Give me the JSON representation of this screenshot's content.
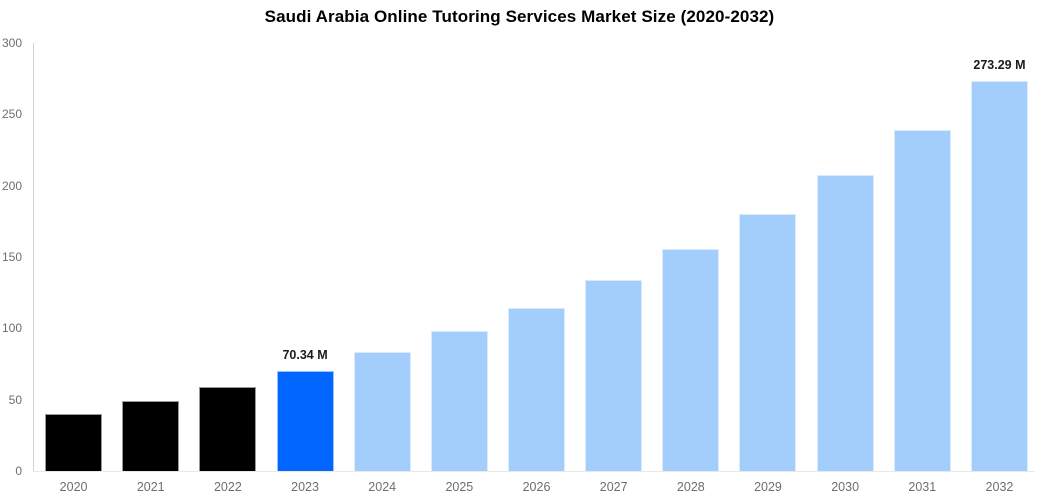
{
  "title": "Saudi Arabia Online Tutoring Services Market Size (2020-2032)",
  "chart_data": {
    "type": "bar",
    "title": "Saudi Arabia Online Tutoring Services Market Size (2020-2032)",
    "categories": [
      "2020",
      "2021",
      "2022",
      "2023",
      "2024",
      "2025",
      "2026",
      "2027",
      "2028",
      "2029",
      "2030",
      "2031",
      "2032"
    ],
    "values": [
      40.2,
      48.9,
      58.8,
      70.34,
      83.1,
      97.9,
      114.4,
      133.6,
      155.3,
      180,
      207.7,
      239.1,
      273.29
    ],
    "unit": "M",
    "data_labels": [
      "",
      "",
      "",
      "70.34 M",
      "",
      "",
      "",
      "",
      "",
      "",
      "",
      "",
      "273.29 M"
    ],
    "bar_colors": [
      "#000000",
      "#000000",
      "#000000",
      "#0066ff",
      "#a3cdfa",
      "#a3cdfa",
      "#a3cdfa",
      "#a3cdfa",
      "#a3cdfa",
      "#a3cdfa",
      "#a3cdfa",
      "#a3cdfa",
      "#a3cdfa"
    ],
    "ylim": [
      0,
      300
    ],
    "yticks": [
      0,
      50,
      100,
      150,
      200,
      250,
      300
    ],
    "xlabel": "",
    "ylabel": "",
    "grid": false,
    "legend": "none"
  },
  "colors": {
    "background": "#ffffff",
    "title_text": "#000000",
    "tick_text": "#6e6e6e",
    "value_label_text": "#1c1c1c",
    "y_axis_line": "#d4d4d4",
    "x_axis_line": "#e9e9e9",
    "historical_bar": "#000000",
    "highlight_bar": "#0066ff",
    "forecast_bar": "#a3cdfa",
    "bar_border": "rgba(255,255,255,0.6)"
  }
}
